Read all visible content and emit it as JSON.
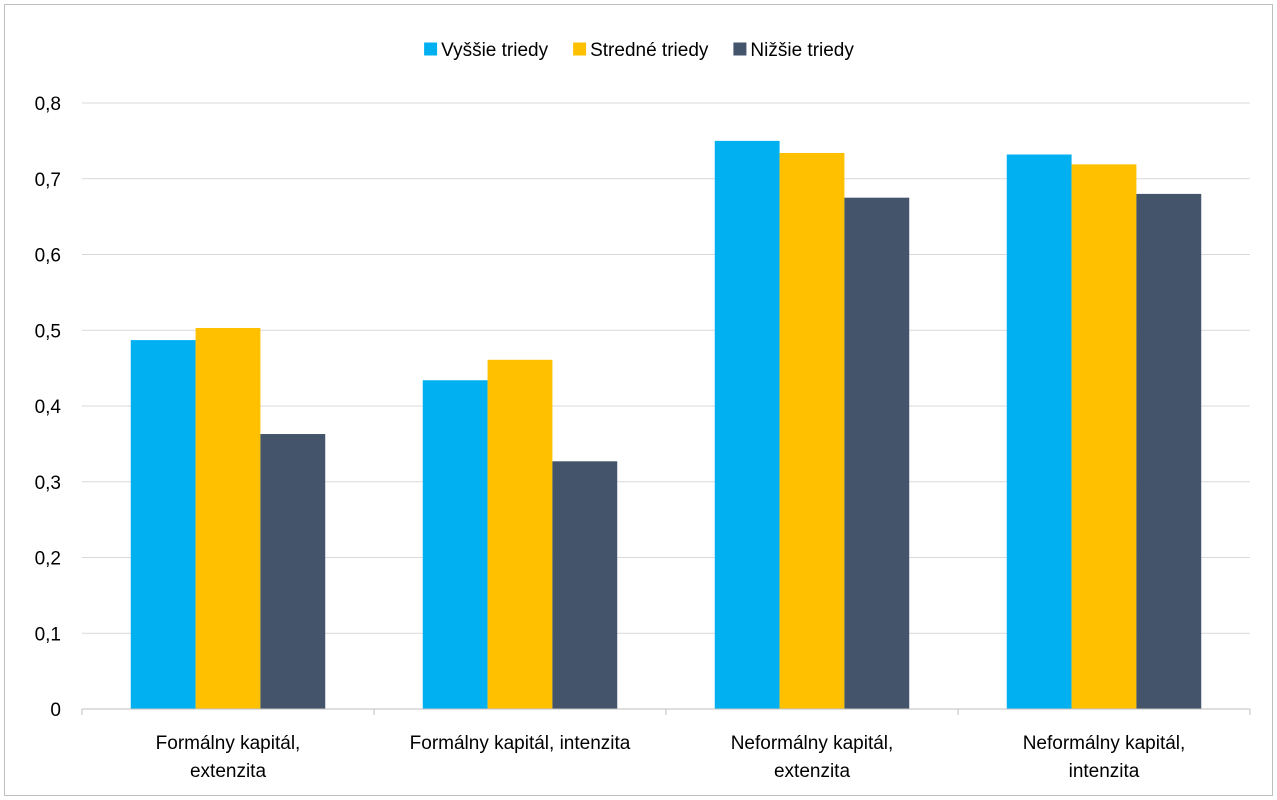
{
  "chart_data": {
    "type": "bar",
    "categories": [
      [
        "Formálny kapitál,",
        "extenzita"
      ],
      [
        "Formálny kapitál, intenzita"
      ],
      [
        "Neformálny kapitál,",
        "extenzita"
      ],
      [
        "Neformálny kapitál,",
        "intenzita"
      ]
    ],
    "series": [
      {
        "name": "Vyššie triedy",
        "color": "#00B0F0",
        "values": [
          0.487,
          0.434,
          0.75,
          0.732
        ]
      },
      {
        "name": "Stredné triedy",
        "color": "#FFC000",
        "values": [
          0.503,
          0.461,
          0.734,
          0.719
        ]
      },
      {
        "name": "Nižšie triedy",
        "color": "#44546A",
        "values": [
          0.363,
          0.327,
          0.675,
          0.68
        ]
      }
    ],
    "ylim": [
      0,
      0.8
    ],
    "yticks": [
      "0",
      "0,1",
      "0,2",
      "0,3",
      "0,4",
      "0,5",
      "0,6",
      "0,7",
      "0,8"
    ],
    "grid": true,
    "legend_position": "top",
    "gridline_color": "#d9d9d9",
    "axis_color": "#bfbfbf"
  }
}
